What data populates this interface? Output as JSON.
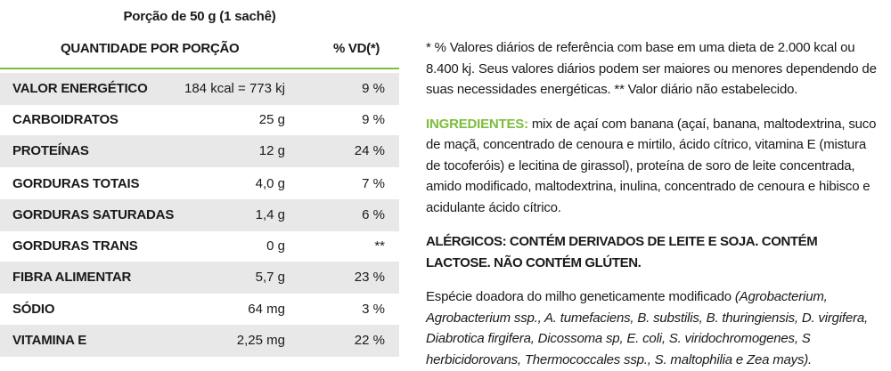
{
  "table": {
    "portion": "Porção de 50 g (1 sachê)",
    "header_qty": "QUANTIDADE POR PORÇÃO",
    "header_vd": "% VD(*)",
    "rows": [
      {
        "name": "VALOR ENERGÉTICO",
        "qty": "184 kcal = 773 kj",
        "vd": "9 %"
      },
      {
        "name": "CARBOIDRATOS",
        "qty": "25 g",
        "vd": "9 %"
      },
      {
        "name": "PROTEÍNAS",
        "qty": "12 g",
        "vd": "24 %"
      },
      {
        "name": "GORDURAS TOTAIS",
        "qty": "4,0 g",
        "vd": "7 %"
      },
      {
        "name": "GORDURAS SATURADAS",
        "qty": "1,4 g",
        "vd": "6 %"
      },
      {
        "name": "GORDURAS TRANS",
        "qty": "0 g",
        "vd": "**"
      },
      {
        "name": "FIBRA ALIMENTAR",
        "qty": "5,7 g",
        "vd": "23 %"
      },
      {
        "name": "SÓDIO",
        "qty": "64 mg",
        "vd": "3 %"
      },
      {
        "name": "VITAMINA E",
        "qty": "2,25 mg",
        "vd": "22 %"
      }
    ]
  },
  "footnote": "* % Valores diários de referência com base em uma dieta de 2.000 kcal ou 8.400 kj. Seus valores diários podem ser maiores ou menores dependendo de suas necessidades energéticas. ** Valor diário não estabelecido.",
  "ingredients": {
    "label": "INGREDIENTES:",
    "text": " mix de açaí com banana (açaí, banana, maltodextrina, suco de maçã, concentrado de cenoura e mirtilo, ácido cítrico, vitamina E (mistura de tocoferóis) e lecitina de girassol), proteína de soro de leite concentrada, amido modificado, maltodextrina, inulina, concentrado de cenoura e hibisco e acidulante ácido cítrico."
  },
  "allergens": "ALÉRGICOS: CONTÉM DERIVADOS DE LEITE E SOJA. CONTÉM LACTOSE. NÃO CONTÉM GLÚTEN.",
  "gmo": {
    "text": "Espécie doadora do milho geneticamente modificado ",
    "species": "(Agrobacterium, Agrobacterium ssp., A. tumefaciens, B. substilis, B. thuringiensis, D. virgifera, Diabrotica firgifera, Dicossoma sp, E. coli, S. viridochromogenes, S herbicidorovans, Thermococcales ssp., S. maltophilia e Zea mays)."
  },
  "colors": {
    "accent": "#7cbd3a",
    "row_shade": "#e8e8e8"
  }
}
